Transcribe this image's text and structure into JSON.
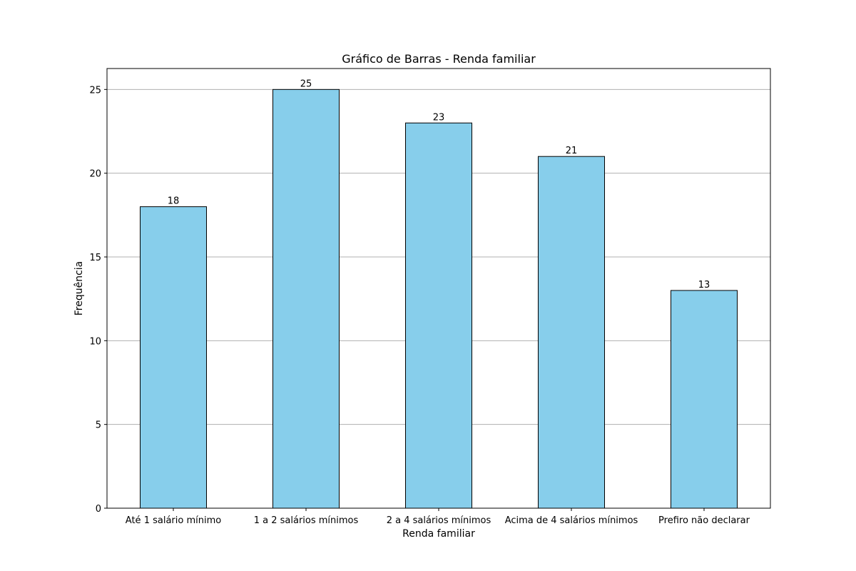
{
  "chart_data": {
    "type": "bar",
    "title": "Gráfico de Barras - Renda familiar",
    "xlabel": "Renda familiar",
    "ylabel": "Frequência",
    "categories": [
      "Até 1 salário mínimo",
      "1 a 2 salários mínimos",
      "2 a 4 salários mínimos",
      "Acima de 4 salários mínimos",
      "Prefiro não declarar"
    ],
    "values": [
      18,
      25,
      23,
      21,
      13
    ],
    "ylim": [
      0,
      26.25
    ],
    "yticks": [
      0,
      5,
      10,
      15,
      20,
      25
    ],
    "grid": "horizontal",
    "colors": {
      "bar": "#87CEEB",
      "edge": "#000000",
      "grid": "#b0b0b0"
    }
  }
}
